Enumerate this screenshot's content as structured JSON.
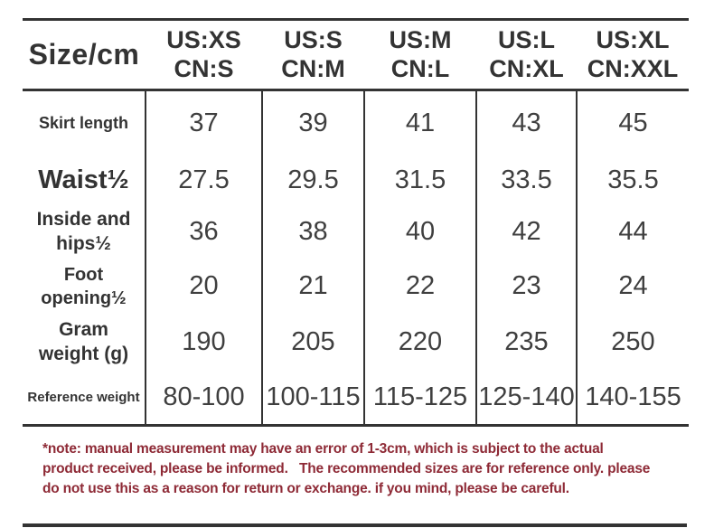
{
  "colors": {
    "background": "#ffffff",
    "text": "#333333",
    "value_text": "#3f3f3f",
    "border": "#333333",
    "note_red": "#8e2a36"
  },
  "chart_data": {
    "type": "table",
    "title": "Size/cm",
    "unit": "cm",
    "columns": [
      {
        "us": "US:XS",
        "cn": "CN:S"
      },
      {
        "us": "US:S",
        "cn": "CN:M"
      },
      {
        "us": "US:M",
        "cn": "CN:L"
      },
      {
        "us": "US:L",
        "cn": "CN:XL"
      },
      {
        "us": "US:XL",
        "cn": "CN:XXL"
      }
    ],
    "rows": [
      {
        "label": "Skirt length",
        "values": [
          "37",
          "39",
          "41",
          "43",
          "45"
        ]
      },
      {
        "label": "Waist½",
        "values": [
          "27.5",
          "29.5",
          "31.5",
          "33.5",
          "35.5"
        ]
      },
      {
        "label": "Inside and hips½",
        "values": [
          "36",
          "38",
          "40",
          "42",
          "44"
        ]
      },
      {
        "label": "Foot opening½",
        "values": [
          "20",
          "21",
          "22",
          "23",
          "24"
        ]
      },
      {
        "label": "Gram weight (g)",
        "values": [
          "190",
          "205",
          "220",
          "235",
          "250"
        ]
      },
      {
        "label": "Reference weight",
        "values": [
          "80-100",
          "100-115",
          "115-125",
          "125-140",
          "140-155"
        ]
      }
    ]
  },
  "note": {
    "lines": [
      "*note: manual measurement may have an error of 1-3cm, which is subject to the actual",
      "product received, please be informed.   The recommended sizes are for reference only. please",
      "do not use this as a reason for return or exchange. if you mind, please be careful."
    ]
  }
}
